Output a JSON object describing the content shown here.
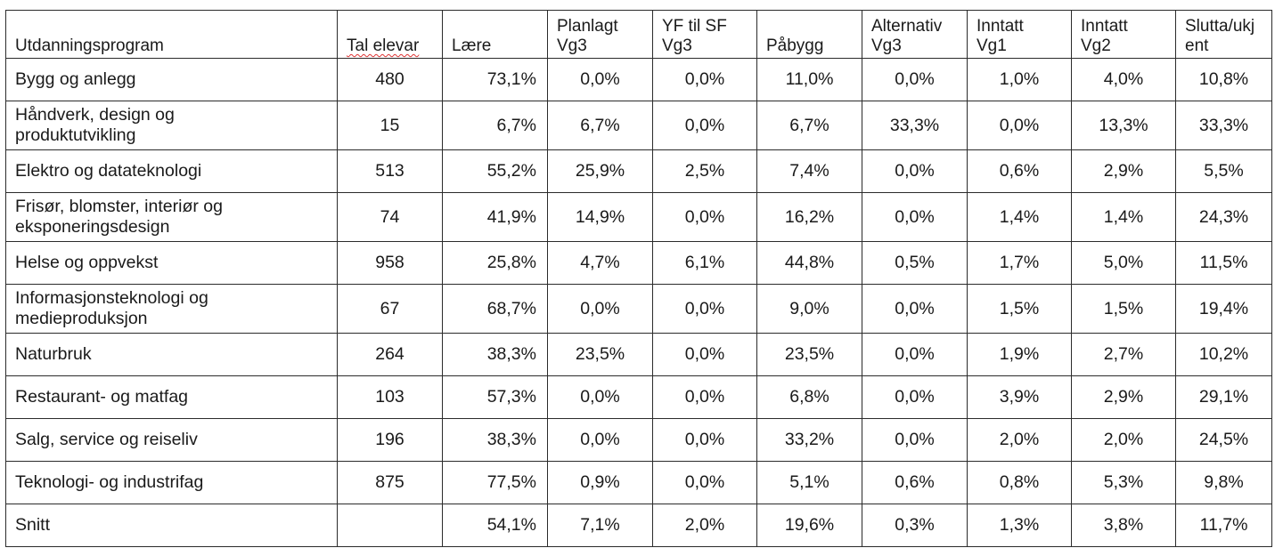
{
  "table": {
    "headers": [
      "Utdanningsprogram",
      "Tal elevar",
      "Lære",
      "Planlagt\nVg3",
      "YF til SF\nVg3",
      "Påbygg",
      "Alternativ\nVg3",
      "Inntatt\nVg1",
      "Inntatt\nVg2",
      "Slutta/ukj\nent"
    ],
    "rows": [
      {
        "program": "Bygg og anlegg",
        "students": "480",
        "vals": [
          "73,1%",
          "0,0%",
          "0,0%",
          "11,0%",
          "0,0%",
          "1,0%",
          "4,0%",
          "10,8%"
        ]
      },
      {
        "program": "Håndverk, design og\nproduktutvikling",
        "students": "15",
        "vals": [
          "6,7%",
          "6,7%",
          "0,0%",
          "6,7%",
          "33,3%",
          "0,0%",
          "13,3%",
          "33,3%"
        ]
      },
      {
        "program": "Elektro og datateknologi",
        "students": "513",
        "vals": [
          "55,2%",
          "25,9%",
          "2,5%",
          "7,4%",
          "0,0%",
          "0,6%",
          "2,9%",
          "5,5%"
        ]
      },
      {
        "program": "Frisør, blomster, interiør og\neksponeringsdesign",
        "students": "74",
        "vals": [
          "41,9%",
          "14,9%",
          "0,0%",
          "16,2%",
          "0,0%",
          "1,4%",
          "1,4%",
          "24,3%"
        ]
      },
      {
        "program": "Helse og oppvekst",
        "students": "958",
        "vals": [
          "25,8%",
          "4,7%",
          "6,1%",
          "44,8%",
          "0,5%",
          "1,7%",
          "5,0%",
          "11,5%"
        ]
      },
      {
        "program": "Informasjonsteknologi og\nmedieproduksjon",
        "students": "67",
        "vals": [
          "68,7%",
          "0,0%",
          "0,0%",
          "9,0%",
          "0,0%",
          "1,5%",
          "1,5%",
          "19,4%"
        ]
      },
      {
        "program": "Naturbruk",
        "students": "264",
        "vals": [
          "38,3%",
          "23,5%",
          "0,0%",
          "23,5%",
          "0,0%",
          "1,9%",
          "2,7%",
          "10,2%"
        ]
      },
      {
        "program": "Restaurant- og matfag",
        "students": "103",
        "vals": [
          "57,3%",
          "0,0%",
          "0,0%",
          "6,8%",
          "0,0%",
          "3,9%",
          "2,9%",
          "29,1%"
        ]
      },
      {
        "program": "Salg, service og reiseliv",
        "students": "196",
        "vals": [
          "38,3%",
          "0,0%",
          "0,0%",
          "33,2%",
          "0,0%",
          "2,0%",
          "2,0%",
          "24,5%"
        ]
      },
      {
        "program": "Teknologi- og industrifag",
        "students": "875",
        "vals": [
          "77,5%",
          "0,9%",
          "0,0%",
          "5,1%",
          "0,6%",
          "0,8%",
          "5,3%",
          "9,8%"
        ]
      },
      {
        "program": "Snitt",
        "students": "",
        "vals": [
          "54,1%",
          "7,1%",
          "2,0%",
          "19,6%",
          "0,3%",
          "1,3%",
          "3,8%",
          "11,7%"
        ]
      }
    ]
  }
}
